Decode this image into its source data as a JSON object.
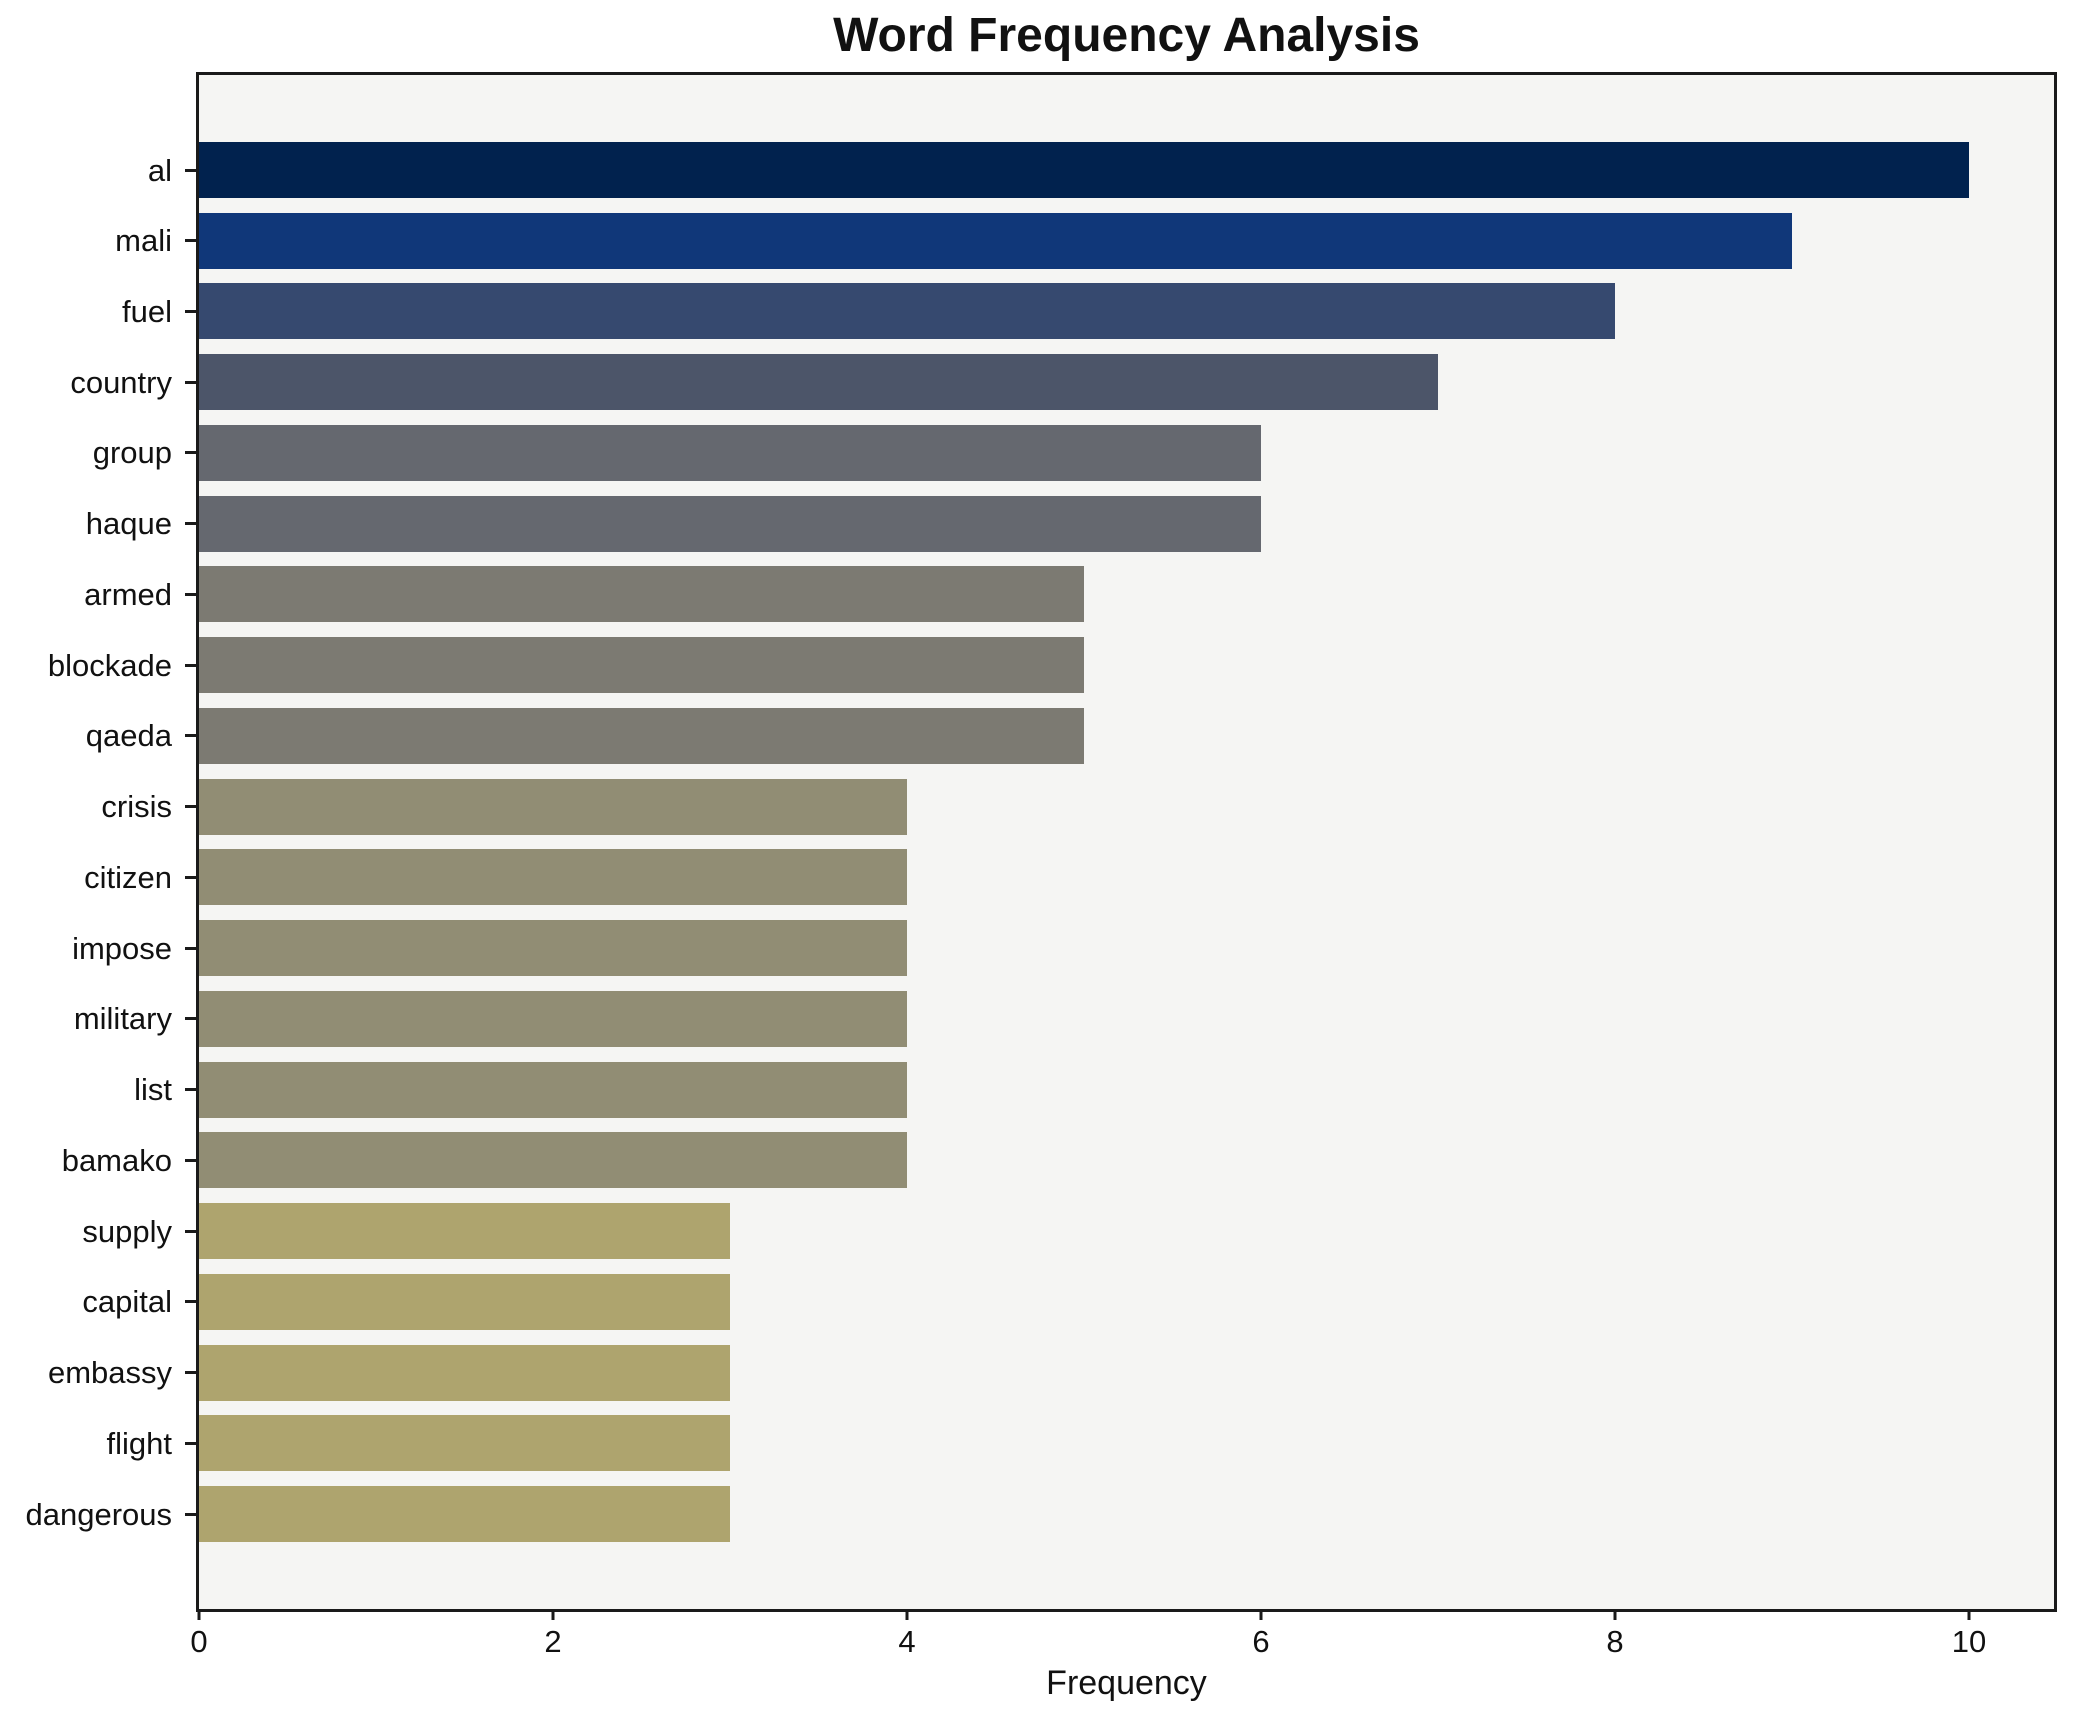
{
  "chart_data": {
    "type": "bar",
    "orientation": "horizontal",
    "title": "Word Frequency Analysis",
    "xlabel": "Frequency",
    "ylabel": "",
    "xlim": [
      0,
      10.48
    ],
    "x_ticks": [
      0,
      2,
      4,
      6,
      8,
      10
    ],
    "grid": false,
    "legend": false,
    "plot_background": "#f5f5f3",
    "figure_background": "#ffffff",
    "spine_color": "#1a1a1a",
    "text_color": "#111111",
    "categories": [
      "al",
      "mali",
      "fuel",
      "country",
      "group",
      "haque",
      "armed",
      "blockade",
      "qaeda",
      "crisis",
      "citizen",
      "impose",
      "military",
      "list",
      "bamako",
      "supply",
      "capital",
      "embassy",
      "flight",
      "dangerous"
    ],
    "values": [
      10,
      9,
      8,
      7,
      6,
      6,
      5,
      5,
      5,
      4,
      4,
      4,
      4,
      4,
      4,
      3,
      3,
      3,
      3,
      3
    ],
    "bar_colors": [
      "#01224e",
      "#103779",
      "#36496f",
      "#4c5569",
      "#65686f",
      "#65686f",
      "#7c7a72",
      "#7c7a72",
      "#7c7a72",
      "#918d74",
      "#918d74",
      "#918d74",
      "#918d74",
      "#918d74",
      "#918d74",
      "#aea46e",
      "#aea46e",
      "#aea46e",
      "#aea46e",
      "#aea46e"
    ]
  }
}
